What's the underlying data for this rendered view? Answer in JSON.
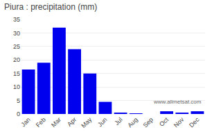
{
  "chart_data": {
    "type": "bar",
    "title": "Piura : precipitation (mm)",
    "categories": [
      "Jan",
      "Feb",
      "Mar",
      "Apr",
      "May",
      "Jun",
      "Jul",
      "Aug",
      "Sep",
      "Oct",
      "Nov",
      "Dec"
    ],
    "values": [
      16.5,
      19.0,
      32.0,
      24.0,
      15.0,
      4.5,
      0.3,
      0.1,
      0.0,
      1.0,
      0.5,
      1.0
    ],
    "color": "#0000EE",
    "ylim": [
      0,
      35
    ],
    "yticks": [
      0,
      5,
      10,
      15,
      20,
      25,
      30,
      35
    ],
    "grid": true,
    "annotations": [
      "www.allmetsat.com"
    ]
  }
}
